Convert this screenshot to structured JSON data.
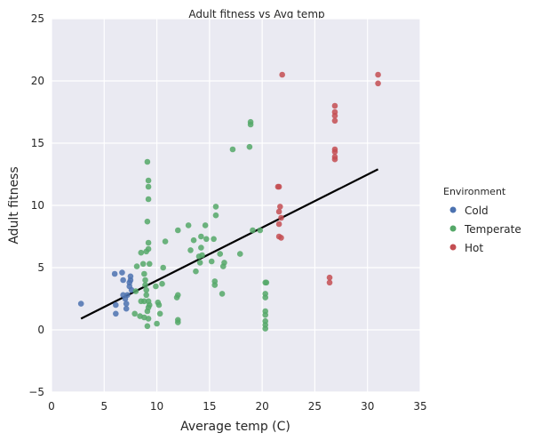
{
  "chart_data": {
    "type": "scatter",
    "title": "Adult fitness vs Avg temp",
    "xlabel": "Average temp (C)",
    "ylabel": "Adult fitness",
    "xlim": [
      0,
      35
    ],
    "ylim": [
      -5,
      25
    ],
    "xticks": [
      "0",
      "5",
      "10",
      "15",
      "20",
      "25",
      "30",
      "35"
    ],
    "yticks": [
      "−5",
      "0",
      "5",
      "10",
      "15",
      "20",
      "25"
    ],
    "grid": true,
    "legend": {
      "title": "Environment",
      "placement": "right"
    },
    "series": [
      {
        "name": "Cold",
        "color": "#4c72b0",
        "points": [
          [
            2.8,
            2.1
          ],
          [
            6.0,
            4.5
          ],
          [
            6.1,
            2.0
          ],
          [
            6.1,
            1.3
          ],
          [
            6.7,
            4.6
          ],
          [
            6.8,
            2.8
          ],
          [
            6.8,
            4.0
          ],
          [
            7.0,
            2.5
          ],
          [
            7.1,
            2.1
          ],
          [
            7.1,
            1.7
          ],
          [
            7.2,
            2.8
          ],
          [
            7.4,
            3.5
          ],
          [
            7.4,
            3.8
          ],
          [
            7.5,
            4.0
          ],
          [
            7.5,
            4.3
          ],
          [
            7.6,
            3.2
          ]
        ]
      },
      {
        "name": "Temperate",
        "color": "#55a868",
        "points": [
          [
            7.9,
            1.3
          ],
          [
            8.0,
            3.1
          ],
          [
            8.1,
            5.1
          ],
          [
            8.4,
            1.1
          ],
          [
            8.5,
            6.2
          ],
          [
            8.5,
            2.3
          ],
          [
            8.7,
            5.3
          ],
          [
            8.8,
            1.0
          ],
          [
            8.8,
            2.3
          ],
          [
            8.8,
            4.5
          ],
          [
            8.9,
            4.0
          ],
          [
            8.9,
            3.6
          ],
          [
            9.0,
            3.2
          ],
          [
            9.0,
            2.8
          ],
          [
            9.0,
            6.3
          ],
          [
            9.1,
            1.5
          ],
          [
            9.1,
            0.3
          ],
          [
            9.1,
            8.7
          ],
          [
            9.2,
            10.5
          ],
          [
            9.2,
            11.5
          ],
          [
            9.2,
            12.0
          ],
          [
            9.1,
            13.5
          ],
          [
            9.2,
            6.5
          ],
          [
            9.2,
            7.0
          ],
          [
            9.2,
            1.8
          ],
          [
            9.2,
            2.3
          ],
          [
            9.2,
            0.9
          ],
          [
            9.3,
            2.0
          ],
          [
            9.3,
            5.3
          ],
          [
            9.9,
            3.5
          ],
          [
            10.0,
            0.5
          ],
          [
            10.1,
            2.2
          ],
          [
            10.2,
            2.0
          ],
          [
            10.3,
            1.3
          ],
          [
            10.5,
            3.7
          ],
          [
            10.6,
            5.0
          ],
          [
            10.8,
            7.1
          ],
          [
            11.9,
            2.6
          ],
          [
            12.0,
            2.8
          ],
          [
            12.0,
            0.6
          ],
          [
            12.0,
            0.8
          ],
          [
            12.0,
            8.0
          ],
          [
            13.0,
            8.4
          ],
          [
            13.2,
            6.4
          ],
          [
            13.5,
            7.2
          ],
          [
            13.7,
            4.7
          ],
          [
            14.0,
            5.9
          ],
          [
            14.1,
            5.4
          ],
          [
            14.2,
            7.5
          ],
          [
            14.2,
            6.6
          ],
          [
            14.3,
            6.0
          ],
          [
            14.6,
            8.4
          ],
          [
            14.7,
            7.3
          ],
          [
            15.2,
            5.5
          ],
          [
            15.4,
            7.3
          ],
          [
            15.5,
            3.6
          ],
          [
            15.5,
            3.9
          ],
          [
            15.6,
            9.9
          ],
          [
            15.6,
            9.2
          ],
          [
            16.0,
            6.1
          ],
          [
            16.2,
            2.9
          ],
          [
            16.3,
            5.1
          ],
          [
            16.4,
            5.4
          ],
          [
            17.2,
            14.5
          ],
          [
            17.9,
            6.1
          ],
          [
            18.8,
            14.7
          ],
          [
            18.9,
            16.7
          ],
          [
            18.9,
            16.5
          ],
          [
            19.1,
            8.0
          ],
          [
            19.8,
            8.0
          ],
          [
            20.3,
            3.8
          ],
          [
            20.3,
            2.9
          ],
          [
            20.3,
            2.6
          ],
          [
            20.3,
            1.5
          ],
          [
            20.3,
            1.2
          ],
          [
            20.3,
            0.7
          ],
          [
            20.3,
            0.4
          ],
          [
            20.3,
            0.1
          ],
          [
            20.4,
            3.8
          ]
        ]
      },
      {
        "name": "Hot",
        "color": "#c44e52",
        "points": [
          [
            21.5,
            11.5
          ],
          [
            21.6,
            11.5
          ],
          [
            21.6,
            9.5
          ],
          [
            21.6,
            8.5
          ],
          [
            21.6,
            7.5
          ],
          [
            21.7,
            9.9
          ],
          [
            21.8,
            9.0
          ],
          [
            21.8,
            7.4
          ],
          [
            21.9,
            20.5
          ],
          [
            26.4,
            4.2
          ],
          [
            26.4,
            3.8
          ],
          [
            26.9,
            18.0
          ],
          [
            26.9,
            17.5
          ],
          [
            26.9,
            17.2
          ],
          [
            26.9,
            16.8
          ],
          [
            26.9,
            14.5
          ],
          [
            26.9,
            14.3
          ],
          [
            26.9,
            13.9
          ],
          [
            26.9,
            13.7
          ],
          [
            31.0,
            20.5
          ],
          [
            31.0,
            19.8
          ]
        ]
      }
    ],
    "regression_line": {
      "color": "#000000",
      "x": [
        2.8,
        31.0
      ],
      "y": [
        0.9,
        12.9
      ]
    }
  }
}
